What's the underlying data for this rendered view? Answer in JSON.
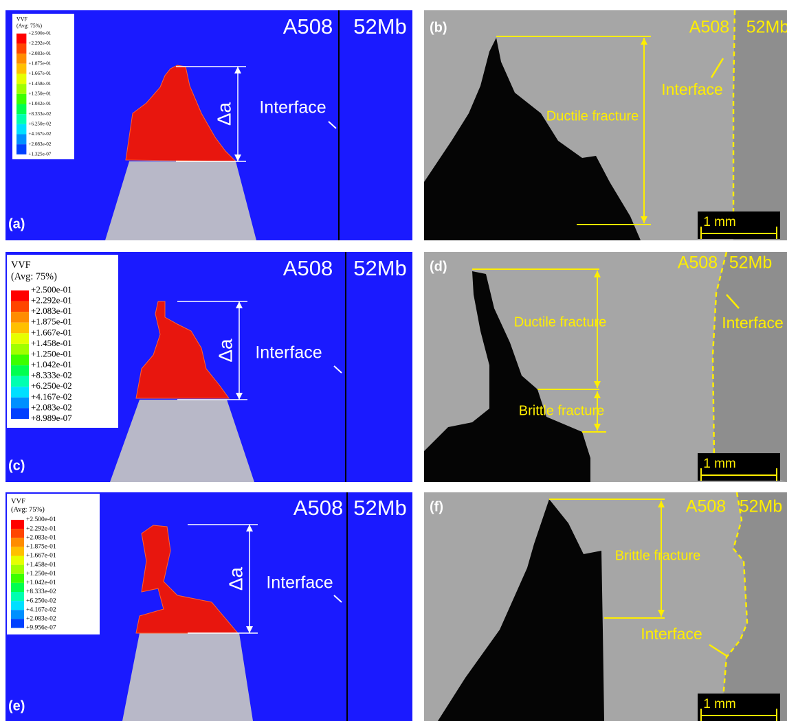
{
  "left_panels": [
    {
      "label": "(a)",
      "legend_title": "VVF",
      "legend_subtitle": "(Avg: 75%)",
      "legend_values": [
        "+2.500e-01",
        "+2.292e-01",
        "+2.083e-01",
        "+1.875e-01",
        "+1.667e-01",
        "+1.458e-01",
        "+1.250e-01",
        "+1.042e-01",
        "+8.333e-02",
        "+6.250e-02",
        "+4.167e-02",
        "+2.083e-02",
        "+1.325e-07"
      ],
      "left_material": "A508",
      "right_material": "52Mb",
      "interface": "Interface",
      "crack_extension": "Δa"
    },
    {
      "label": "(c)",
      "legend_title": "VVF",
      "legend_subtitle": "(Avg: 75%)",
      "legend_values": [
        "+2.500e-01",
        "+2.292e-01",
        "+2.083e-01",
        "+1.875e-01",
        "+1.667e-01",
        "+1.458e-01",
        "+1.250e-01",
        "+1.042e-01",
        "+8.333e-02",
        "+6.250e-02",
        "+4.167e-02",
        "+2.083e-02",
        "+8.989e-07"
      ],
      "left_material": "A508",
      "right_material": "52Mb",
      "interface": "Interface",
      "crack_extension": "Δa"
    },
    {
      "label": "(e)",
      "legend_title": "VVF",
      "legend_subtitle": "(Avg: 75%)",
      "legend_values": [
        "+2.500e-01",
        "+2.292e-01",
        "+2.083e-01",
        "+1.875e-01",
        "+1.667e-01",
        "+1.458e-01",
        "+1.250e-01",
        "+1.042e-01",
        "+8.333e-02",
        "+6.250e-02",
        "+4.167e-02",
        "+2.083e-02",
        "+9.956e-07"
      ],
      "left_material": "A508",
      "right_material": "52Mb",
      "interface": "Interface",
      "crack_extension": "Δa"
    }
  ],
  "right_panels": [
    {
      "label": "(b)",
      "left_material": "A508",
      "right_material": "52Mb",
      "interface": "Interface",
      "annotations": [
        "Ductile fracture"
      ],
      "scale_bar": "1 mm"
    },
    {
      "label": "(d)",
      "left_material": "A508",
      "right_material": "52Mb",
      "interface": "Interface",
      "annotations": [
        "Ductile fracture",
        "Brittle fracture"
      ],
      "scale_bar": "1 mm"
    },
    {
      "label": "(f)",
      "left_material": "A508",
      "right_material": "52Mb",
      "interface": "Interface",
      "annotations": [
        "Brittle fracture"
      ],
      "scale_bar": "1 mm"
    }
  ]
}
